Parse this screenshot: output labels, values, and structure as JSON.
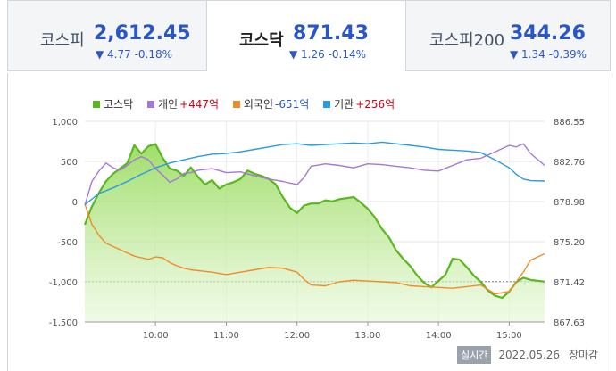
{
  "tabs": [
    {
      "name": "코스피",
      "value": "2,612.45",
      "change": "▼ 4.77 -0.18%"
    },
    {
      "name": "코스닥",
      "value": "871.43",
      "change": "▼ 1.26 -0.14%"
    },
    {
      "name": "코스피200",
      "value": "344.26",
      "change": "▼ 1.34 -0.39%"
    }
  ],
  "legend": [
    {
      "label": "코스닥",
      "value": ""
    },
    {
      "label": "개인",
      "value": "+447억"
    },
    {
      "label": "외국인",
      "value": "-651억"
    },
    {
      "label": "기관",
      "value": "+256억"
    }
  ],
  "colors": {
    "kosdaq": "#5ab720",
    "individual": "#a678d8",
    "foreign": "#f08c28",
    "institution": "#2b9be0",
    "up": "#d0021b",
    "down": "#2a56c6"
  },
  "footer": {
    "badge": "실시간",
    "timestamp": "2022.05.26",
    "status": "장마감"
  },
  "chart_data": {
    "type": "line",
    "title": "",
    "left_axis": {
      "ticks": [
        "1,000",
        "500",
        "0",
        "-500",
        "-1,000",
        "-1,500"
      ],
      "ylim": [
        -1500,
        1000
      ]
    },
    "right_axis": {
      "ticks": [
        "886.55",
        "882.76",
        "878.98",
        "875.20",
        "871.42",
        "867.63"
      ],
      "ylim": [
        867.63,
        886.55
      ]
    },
    "x_ticks": [
      "10:00",
      "11:00",
      "12:00",
      "13:00",
      "14:00",
      "15:00"
    ],
    "reference_line": 871.43,
    "series": [
      {
        "name": "코스닥",
        "axis": "right",
        "area": true,
        "x": [
          9.0,
          9.1,
          9.2,
          9.3,
          9.4,
          9.5,
          9.6,
          9.7,
          9.8,
          9.9,
          10.0,
          10.1,
          10.2,
          10.3,
          10.4,
          10.5,
          10.6,
          10.7,
          10.8,
          10.9,
          11.0,
          11.1,
          11.2,
          11.3,
          11.4,
          11.5,
          11.6,
          11.7,
          11.8,
          11.9,
          12.0,
          12.1,
          12.2,
          12.3,
          12.4,
          12.5,
          12.6,
          12.7,
          12.8,
          12.9,
          13.0,
          13.1,
          13.2,
          13.3,
          13.4,
          13.5,
          13.6,
          13.7,
          13.8,
          13.9,
          14.0,
          14.1,
          14.2,
          14.3,
          14.4,
          14.5,
          14.6,
          14.7,
          14.8,
          14.9,
          15.0,
          15.1,
          15.2,
          15.3,
          15.5
        ],
        "values": [
          876.8,
          878.5,
          879.8,
          880.9,
          881.6,
          882.1,
          882.6,
          884.3,
          883.5,
          884.2,
          884.4,
          883.1,
          882.1,
          881.9,
          881.4,
          882.2,
          881.3,
          880.6,
          881.0,
          880.2,
          880.6,
          880.8,
          881.1,
          881.9,
          881.6,
          881.4,
          881.1,
          880.6,
          879.4,
          878.4,
          877.9,
          878.6,
          878.8,
          878.8,
          879.1,
          879.0,
          879.2,
          879.3,
          879.4,
          878.9,
          878.3,
          877.5,
          876.4,
          875.6,
          874.4,
          873.6,
          872.9,
          872.0,
          871.3,
          870.9,
          871.5,
          872.1,
          873.6,
          873.5,
          872.8,
          872.0,
          871.4,
          870.6,
          870.1,
          869.9,
          870.5,
          871.4,
          871.8,
          871.6,
          871.43
        ]
      },
      {
        "name": "개인",
        "axis": "left",
        "x": [
          9.0,
          9.1,
          9.2,
          9.3,
          9.4,
          9.5,
          9.6,
          9.7,
          9.8,
          9.9,
          10.0,
          10.1,
          10.2,
          10.3,
          10.4,
          10.5,
          10.6,
          10.8,
          11.0,
          11.2,
          11.4,
          11.6,
          11.8,
          12.0,
          12.1,
          12.2,
          12.4,
          12.6,
          12.8,
          13.0,
          13.2,
          13.4,
          13.6,
          13.8,
          14.0,
          14.2,
          14.4,
          14.6,
          14.8,
          15.0,
          15.1,
          15.2,
          15.3,
          15.5
        ],
        "values": [
          -50,
          250,
          380,
          480,
          420,
          390,
          450,
          520,
          560,
          520,
          410,
          330,
          240,
          280,
          350,
          360,
          390,
          410,
          360,
          370,
          320,
          280,
          250,
          210,
          300,
          440,
          470,
          450,
          420,
          470,
          460,
          440,
          420,
          390,
          380,
          450,
          520,
          540,
          620,
          700,
          680,
          720,
          600,
          450
        ]
      },
      {
        "name": "외국인",
        "axis": "left",
        "x": [
          9.0,
          9.1,
          9.2,
          9.3,
          9.4,
          9.5,
          9.6,
          9.7,
          9.8,
          9.9,
          10.0,
          10.1,
          10.2,
          10.3,
          10.4,
          10.5,
          10.6,
          10.8,
          11.0,
          11.2,
          11.4,
          11.6,
          11.8,
          12.0,
          12.1,
          12.2,
          12.4,
          12.6,
          12.8,
          13.0,
          13.2,
          13.4,
          13.6,
          13.8,
          14.0,
          14.2,
          14.4,
          14.6,
          14.8,
          15.0,
          15.1,
          15.2,
          15.3,
          15.5
        ],
        "values": [
          -30,
          -280,
          -420,
          -520,
          -560,
          -600,
          -640,
          -680,
          -700,
          -720,
          -690,
          -700,
          -760,
          -800,
          -830,
          -850,
          -860,
          -880,
          -910,
          -880,
          -850,
          -820,
          -830,
          -880,
          -970,
          -1040,
          -1050,
          -1000,
          -980,
          -990,
          -1000,
          -1010,
          -1050,
          -1060,
          -1070,
          -1080,
          -1060,
          -1040,
          -1150,
          -1120,
          -1000,
          -880,
          -730,
          -650
        ]
      },
      {
        "name": "기관",
        "axis": "left",
        "x": [
          9.0,
          9.2,
          9.4,
          9.6,
          9.8,
          10.0,
          10.2,
          10.4,
          10.6,
          10.8,
          11.0,
          11.2,
          11.4,
          11.6,
          11.8,
          12.0,
          12.2,
          12.4,
          12.6,
          12.8,
          13.0,
          13.2,
          13.4,
          13.6,
          13.8,
          14.0,
          14.2,
          14.4,
          14.6,
          14.8,
          15.0,
          15.1,
          15.2,
          15.3,
          15.5
        ],
        "values": [
          -40,
          100,
          170,
          250,
          340,
          420,
          480,
          520,
          560,
          590,
          600,
          620,
          650,
          680,
          710,
          720,
          700,
          710,
          720,
          730,
          720,
          740,
          720,
          700,
          680,
          650,
          640,
          630,
          610,
          520,
          420,
          340,
          280,
          260,
          256
        ]
      }
    ]
  }
}
